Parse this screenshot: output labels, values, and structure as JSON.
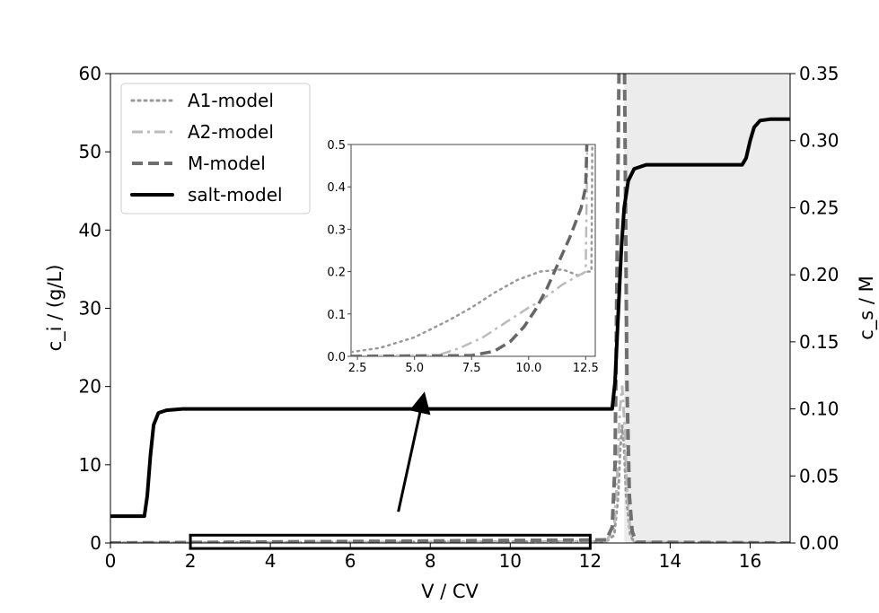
{
  "chart_data": {
    "type": "line",
    "xlabel": "V / CV",
    "ylabel_left": "c_i / (g/L)",
    "ylabel_right": "c_s / M",
    "xlim": [
      0,
      17
    ],
    "ylim_left": [
      0,
      60
    ],
    "ylim_right": [
      0,
      0.35
    ],
    "xticks": [
      "0",
      "2",
      "4",
      "6",
      "8",
      "10",
      "12",
      "14",
      "16"
    ],
    "yticks_left": [
      "0",
      "10",
      "20",
      "30",
      "40",
      "50",
      "60"
    ],
    "yticks_right": [
      "0.00",
      "0.05",
      "0.10",
      "0.15",
      "0.20",
      "0.25",
      "0.30",
      "0.35"
    ],
    "shaded_region_x": [
      12.85,
      17
    ],
    "shade_color": "#ececec",
    "legend_position": "top-left",
    "legend": [
      "A1-model",
      "A2-model",
      "M-model",
      "salt-model"
    ],
    "series": [
      {
        "name": "A1-model",
        "axis": "left",
        "style": "dotted",
        "color": "#999999",
        "x": [
          0,
          12.4,
          12.6,
          12.7,
          12.75,
          12.8,
          12.85,
          12.9,
          13.0,
          13.1,
          17
        ],
        "y": [
          0.02,
          0.2,
          1,
          6,
          12,
          15,
          12,
          6,
          1,
          0.1,
          0
        ]
      },
      {
        "name": "A2-model",
        "axis": "left",
        "style": "dashdot",
        "color": "#bbbbbb",
        "x": [
          0,
          12.4,
          12.6,
          12.68,
          12.74,
          12.8,
          12.86,
          12.92,
          13.0,
          13.1,
          17
        ],
        "y": [
          0,
          0.2,
          2,
          9,
          17,
          20,
          15,
          7,
          1.5,
          0.1,
          0
        ]
      },
      {
        "name": "M-model",
        "axis": "left",
        "style": "dashed",
        "color": "#707070",
        "x": [
          0,
          12.4,
          12.55,
          12.62,
          12.68,
          12.74,
          12.8,
          12.86,
          12.92,
          12.98,
          13.05,
          13.15,
          17
        ],
        "y": [
          0,
          0.4,
          2,
          10,
          40,
          70,
          80,
          60,
          20,
          6,
          1.5,
          0.1,
          0
        ]
      },
      {
        "name": "salt-model",
        "axis": "right",
        "style": "solid",
        "color": "#000000",
        "x": [
          0,
          0.85,
          0.92,
          1.0,
          1.08,
          1.2,
          1.4,
          1.8,
          12.55,
          12.62,
          12.7,
          12.78,
          12.85,
          12.95,
          13.1,
          13.4,
          15.8,
          15.9,
          16.0,
          16.1,
          16.25,
          16.5,
          17
        ],
        "y": [
          0.02,
          0.02,
          0.035,
          0.065,
          0.088,
          0.097,
          0.099,
          0.1,
          0.1,
          0.12,
          0.17,
          0.22,
          0.25,
          0.27,
          0.279,
          0.282,
          0.282,
          0.287,
          0.3,
          0.31,
          0.315,
          0.316,
          0.316
        ]
      }
    ],
    "annotation_box_x": [
      2,
      12
    ],
    "annotation_box_y": [
      -0.7,
      1.0
    ],
    "arrow": {
      "from": [
        7.2,
        4
      ],
      "to": [
        7.8,
        18
      ]
    },
    "inset": {
      "xlim": [
        2.22,
        12.92
      ],
      "ylim": [
        0,
        0.5
      ],
      "xticks": [
        "2.5",
        "5.0",
        "7.5",
        "10.0",
        "12.5"
      ],
      "yticks": [
        "0.0",
        "0.1",
        "0.2",
        "0.3",
        "0.4",
        "0.5"
      ],
      "series": [
        {
          "name": "A1-model",
          "style": "dotted",
          "color": "#999999",
          "x": [
            2.22,
            3.5,
            5,
            6.5,
            7.5,
            8.5,
            9.5,
            10.5,
            11.5,
            12.2,
            12.5,
            12.75,
            12.78,
            12.8
          ],
          "y": [
            0.01,
            0.02,
            0.045,
            0.085,
            0.115,
            0.15,
            0.18,
            0.2,
            0.205,
            0.19,
            0.2,
            0.2,
            0.4,
            0.6
          ]
        },
        {
          "name": "A2-model",
          "style": "dashdot",
          "color": "#bbbbbb",
          "x": [
            2.22,
            6,
            7,
            8,
            9,
            10,
            10.5,
            11.5,
            12.5,
            12.55,
            12.58
          ],
          "y": [
            0,
            0.002,
            0.02,
            0.045,
            0.08,
            0.115,
            0.13,
            0.17,
            0.2,
            0.4,
            0.6
          ]
        },
        {
          "name": "M-model",
          "style": "dashed",
          "color": "#666666",
          "x": [
            2.22,
            7.5,
            8.5,
            9.2,
            9.8,
            10.3,
            10.8,
            11.3,
            11.8,
            12.3,
            12.5,
            12.55,
            12.6
          ],
          "y": [
            0,
            0.002,
            0.012,
            0.035,
            0.07,
            0.11,
            0.16,
            0.22,
            0.28,
            0.35,
            0.4,
            0.5,
            0.6
          ]
        }
      ]
    }
  }
}
